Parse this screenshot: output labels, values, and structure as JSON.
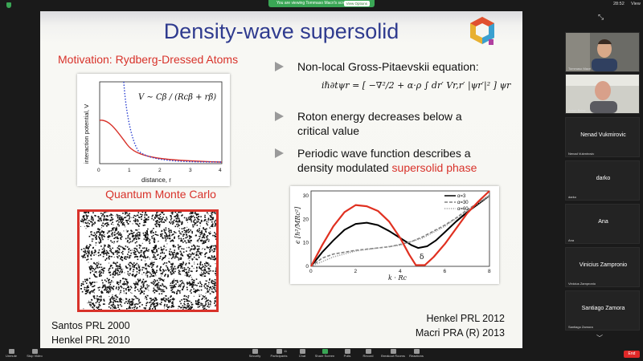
{
  "zoom": {
    "banner_text": "You are viewing Tommaso Macri's screen",
    "view_options": "View Options",
    "clock": "28:52",
    "view_label": "View"
  },
  "slide": {
    "title": "Density-wave supersolid",
    "motivation": "Motivation: Rydberg-Dressed Atoms",
    "qmc_label": "Quantum Monte Carlo",
    "potential_plot": {
      "formula": "V ∼ Cβ / (Rcβ + rβ)",
      "ylabel": "interaction potential, V",
      "xlabel": "distance, r",
      "x_ticks": [
        "0",
        "1",
        "2",
        "3",
        "4"
      ]
    },
    "bullets": [
      {
        "text": "Non-local Gross-Pitaevskii equation:"
      },
      {
        "text_lines": [
          "Roton energy decreases below a",
          "critical value"
        ]
      },
      {
        "text_lines": [
          "Periodic wave function describes a",
          "density modulated "
        ],
        "highlight": "supersolid phase"
      }
    ],
    "equation": "iℏ∂tψr = [ −∇²/2 + α·ρ ∫ dr′ Vr,r′ |ψr′|² ] ψr",
    "refs_left": [
      "Santos PRL 2000",
      "Henkel PRL 2010"
    ],
    "refs_right": [
      "Henkel PRL 2012",
      "Macri PRA (R) 2013"
    ]
  },
  "chart_data": {
    "type": "line",
    "title": "",
    "xlabel": "k · Rc",
    "ylabel": "ϵ [ℏ²/MRc²]",
    "xlim": [
      0,
      8
    ],
    "ylim": [
      0,
      32
    ],
    "x_ticks": [
      "0",
      "2",
      "4",
      "6",
      "8"
    ],
    "y_ticks": [
      "0",
      "10",
      "20",
      "30"
    ],
    "annotation": "δ",
    "legend_position": "top-right",
    "series": [
      {
        "name": "α=3",
        "color": "#000000",
        "style": "solid",
        "x": [
          0,
          0.5,
          1,
          1.5,
          2,
          2.5,
          3,
          3.5,
          4,
          4.5,
          4.8,
          5.2,
          5.6,
          6,
          6.5,
          7,
          7.5,
          8
        ],
        "y": [
          0,
          6,
          11,
          15.5,
          18,
          18.5,
          17.5,
          15,
          12,
          9,
          7.8,
          8.5,
          11,
          14.5,
          19,
          23,
          26.5,
          30
        ]
      },
      {
        "name": "α=30",
        "color": "#808080",
        "style": "dashed",
        "x": [
          0,
          0.5,
          1,
          1.5,
          2,
          2.5,
          3,
          3.5,
          4,
          4.5,
          5,
          5.5,
          6,
          6.5,
          7,
          7.5,
          8
        ],
        "y": [
          0,
          3.5,
          5.2,
          6,
          6.8,
          7.3,
          7.8,
          8.3,
          9.3,
          10.5,
          12.5,
          15,
          17.5,
          20.5,
          24,
          27,
          30
        ]
      },
      {
        "name": "α=60",
        "color": "#a0a0a0",
        "style": "dotted",
        "x": [
          0,
          1,
          2,
          3,
          4,
          5,
          6,
          7,
          8
        ],
        "y": [
          0,
          4,
          6.5,
          7.8,
          9,
          12,
          17,
          23.5,
          30
        ]
      },
      {
        "name": "",
        "color": "#e03020",
        "style": "solid",
        "x": [
          0,
          0.5,
          1,
          1.5,
          2,
          2.5,
          3,
          3.5,
          4,
          4.4,
          4.7,
          5.1,
          5.5,
          6,
          6.5,
          7,
          7.5,
          8
        ],
        "y": [
          0,
          9,
          17,
          23,
          26,
          25.5,
          23.5,
          19,
          12,
          5,
          0.5,
          0.5,
          4,
          9.5,
          16,
          22.5,
          27.5,
          32
        ]
      }
    ]
  },
  "participants": [
    {
      "name": "Tommaso Macri",
      "video": true
    },
    {
      "name": "Antun Balaz",
      "video": true
    },
    {
      "name": "Nenad Vukmirovic",
      "tag": "Nenad Vukmirovic"
    },
    {
      "name": "darko",
      "tag": "darko"
    },
    {
      "name": "Ana",
      "tag": "Ana"
    },
    {
      "name": "Vinicius Zampronio",
      "tag": "Vinicius Zampronio"
    },
    {
      "name": "Santiago Zamora",
      "tag": "Santiago Zamora"
    }
  ],
  "toolbar": {
    "unmute": "Unmute",
    "stop_video": "Stop Video",
    "security": "Security",
    "participants": "Participants",
    "participants_count": "11",
    "chat": "Chat",
    "share_screen": "Share Screen",
    "polls": "Polls",
    "record": "Record",
    "breakout_rooms": "Breakout Rooms",
    "reactions": "Reactions",
    "end": "End"
  }
}
